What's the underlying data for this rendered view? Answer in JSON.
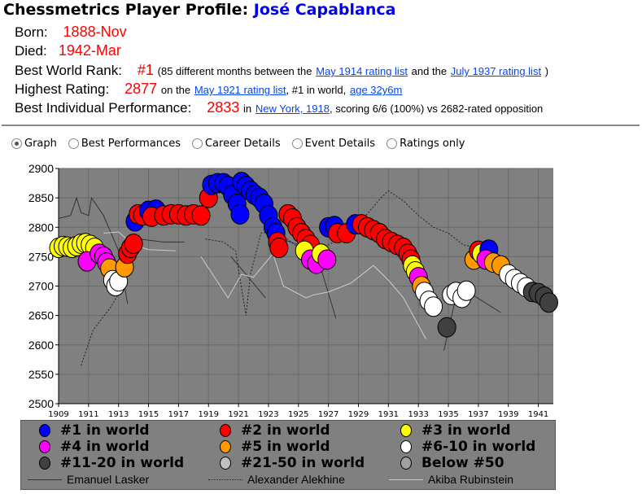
{
  "title": {
    "prefix": "Chessmetrics Player Profile:",
    "name": "José Capablanca"
  },
  "born": {
    "label": "Born:",
    "value": "1888-Nov"
  },
  "died": {
    "label": "Died:",
    "value": "1942-Mar"
  },
  "best_rank": {
    "label": "Best World Rank:",
    "value": "#1",
    "text1": "(85 different months between the",
    "link1": "May 1914 rating list",
    "text2": "and the",
    "link2": "July 1937 rating list",
    "text3": ")"
  },
  "highest": {
    "label": "Highest Rating:",
    "value": "2877",
    "text1": "on the",
    "link1": "May 1921 rating list",
    "text2": ", #1 in world,",
    "link2": "age 32y6m"
  },
  "best_perf": {
    "label": "Best Individual Performance:",
    "value": "2833",
    "text1": "in",
    "link1": "New York, 1918",
    "text2": ", scoring 6/6 (100%) vs 2682-rated opposition"
  },
  "views": [
    {
      "label": "Graph",
      "selected": true
    },
    {
      "label": "Best Performances"
    },
    {
      "label": "Career Details"
    },
    {
      "label": "Event Details"
    },
    {
      "label": "Ratings only"
    }
  ],
  "chart_data": {
    "type": "scatter",
    "ylim": [
      2500,
      2900
    ],
    "xlim": [
      1909,
      1942
    ],
    "yticks": [
      2900,
      2850,
      2800,
      2750,
      2700,
      2650,
      2600,
      2550,
      2500
    ],
    "xticks": [
      1909,
      1911,
      1913,
      1915,
      1917,
      1919,
      1921,
      1923,
      1925,
      1927,
      1929,
      1931,
      1933,
      1935,
      1937,
      1939,
      1941
    ],
    "colors": {
      "1": "#0000ff",
      "2": "#ff0000",
      "3": "#ffff00",
      "4": "#ff00ff",
      "5": "#ff9900",
      "6-10": "#ffffff",
      "11-20": "#404040",
      "21-50": "#c0c0c0",
      "below50": "#a0a0a0"
    },
    "legend": [
      {
        "key": "1",
        "label": "#1 in world"
      },
      {
        "key": "2",
        "label": "#2 in world"
      },
      {
        "key": "3",
        "label": "#3 in world"
      },
      {
        "key": "4",
        "label": "#4 in world"
      },
      {
        "key": "5",
        "label": "#5 in world"
      },
      {
        "key": "6-10",
        "label": "#6-10 in world"
      },
      {
        "key": "11-20",
        "label": "#11-20 in world"
      },
      {
        "key": "21-50",
        "label": "#21-50 in world"
      },
      {
        "key": "below50",
        "label": "Below #50"
      }
    ],
    "points": [
      [
        1909.0,
        2765,
        "3"
      ],
      [
        1909.3,
        2768,
        "3"
      ],
      [
        1909.6,
        2767,
        "3"
      ],
      [
        1909.9,
        2765,
        "3"
      ],
      [
        1910.2,
        2768,
        "3"
      ],
      [
        1910.5,
        2772,
        "3"
      ],
      [
        1910.8,
        2773,
        "3"
      ],
      [
        1911.1,
        2770,
        "3"
      ],
      [
        1911.4,
        2765,
        "3"
      ],
      [
        1910.9,
        2742,
        "4"
      ],
      [
        1911.7,
        2755,
        "4"
      ],
      [
        1912.0,
        2750,
        "4"
      ],
      [
        1912.2,
        2740,
        "4"
      ],
      [
        1912.4,
        2730,
        "5"
      ],
      [
        1912.6,
        2710,
        "6-10"
      ],
      [
        1912.8,
        2700,
        "6-10"
      ],
      [
        1913.0,
        2708,
        "6-10"
      ],
      [
        1913.4,
        2732,
        "5"
      ],
      [
        1913.6,
        2755,
        "2"
      ],
      [
        1913.8,
        2765,
        "2"
      ],
      [
        1914.0,
        2772,
        "2"
      ],
      [
        1914.1,
        2810,
        "1"
      ],
      [
        1914.3,
        2822,
        "2"
      ],
      [
        1914.6,
        2820,
        "2"
      ],
      [
        1915.0,
        2828,
        "1"
      ],
      [
        1915.5,
        2830,
        "1"
      ],
      [
        1915.2,
        2818,
        "2"
      ],
      [
        1916.0,
        2820,
        "2"
      ],
      [
        1916.5,
        2822,
        "2"
      ],
      [
        1917.0,
        2822,
        "2"
      ],
      [
        1917.5,
        2820,
        "2"
      ],
      [
        1918.0,
        2822,
        "2"
      ],
      [
        1918.5,
        2820,
        "2"
      ],
      [
        1919.0,
        2850,
        "2"
      ],
      [
        1919.2,
        2872,
        "1"
      ],
      [
        1919.6,
        2875,
        "1"
      ],
      [
        1920.0,
        2875,
        "1"
      ],
      [
        1920.3,
        2870,
        "1"
      ],
      [
        1920.6,
        2855,
        "1"
      ],
      [
        1920.9,
        2840,
        "1"
      ],
      [
        1921.1,
        2822,
        "1"
      ],
      [
        1921.2,
        2877,
        "1"
      ],
      [
        1921.5,
        2870,
        "1"
      ],
      [
        1921.8,
        2862,
        "1"
      ],
      [
        1922.1,
        2855,
        "1"
      ],
      [
        1922.4,
        2850,
        "1"
      ],
      [
        1922.7,
        2840,
        "1"
      ],
      [
        1923.0,
        2820,
        "1"
      ],
      [
        1923.3,
        2800,
        "1"
      ],
      [
        1923.5,
        2790,
        "1"
      ],
      [
        1923.6,
        2775,
        "2"
      ],
      [
        1923.7,
        2765,
        "2"
      ],
      [
        1924.3,
        2822,
        "2"
      ],
      [
        1924.6,
        2815,
        "2"
      ],
      [
        1924.9,
        2800,
        "2"
      ],
      [
        1925.2,
        2790,
        "2"
      ],
      [
        1925.5,
        2780,
        "2"
      ],
      [
        1925.8,
        2770,
        "2"
      ],
      [
        1925.4,
        2760,
        "3"
      ],
      [
        1925.8,
        2745,
        "4"
      ],
      [
        1926.2,
        2738,
        "4"
      ],
      [
        1926.5,
        2755,
        "3"
      ],
      [
        1926.9,
        2745,
        "4"
      ],
      [
        1927.0,
        2800,
        "1"
      ],
      [
        1927.4,
        2802,
        "1"
      ],
      [
        1927.6,
        2790,
        "2"
      ],
      [
        1928.2,
        2790,
        "2"
      ],
      [
        1928.8,
        2805,
        "1"
      ],
      [
        1929.2,
        2805,
        "2"
      ],
      [
        1929.6,
        2800,
        "2"
      ],
      [
        1930.0,
        2795,
        "2"
      ],
      [
        1930.4,
        2790,
        "2"
      ],
      [
        1930.8,
        2780,
        "2"
      ],
      [
        1931.2,
        2775,
        "2"
      ],
      [
        1931.6,
        2770,
        "2"
      ],
      [
        1932.0,
        2765,
        "2"
      ],
      [
        1932.3,
        2755,
        "2"
      ],
      [
        1932.5,
        2745,
        "2"
      ],
      [
        1932.6,
        2735,
        "3"
      ],
      [
        1932.8,
        2725,
        "3"
      ],
      [
        1933.0,
        2715,
        "4"
      ],
      [
        1933.2,
        2700,
        "5"
      ],
      [
        1933.4,
        2690,
        "6-10"
      ],
      [
        1933.7,
        2675,
        "6-10"
      ],
      [
        1934.0,
        2665,
        "6-10"
      ],
      [
        1934.9,
        2630,
        "11-20"
      ],
      [
        1935.2,
        2685,
        "6-10"
      ],
      [
        1935.5,
        2690,
        "6-10"
      ],
      [
        1935.9,
        2680,
        "6-10"
      ],
      [
        1936.2,
        2692,
        "6-10"
      ],
      [
        1936.7,
        2745,
        "5"
      ],
      [
        1937.0,
        2760,
        "2"
      ],
      [
        1937.2,
        2755,
        "3"
      ],
      [
        1937.7,
        2762,
        "1"
      ],
      [
        1937.5,
        2745,
        "4"
      ],
      [
        1938.0,
        2740,
        "5"
      ],
      [
        1938.5,
        2735,
        "5"
      ],
      [
        1939.0,
        2720,
        "6-10"
      ],
      [
        1939.4,
        2712,
        "6-10"
      ],
      [
        1939.8,
        2705,
        "6-10"
      ],
      [
        1940.2,
        2698,
        "6-10"
      ],
      [
        1940.6,
        2690,
        "11-20"
      ],
      [
        1941.0,
        2688,
        "11-20"
      ],
      [
        1941.4,
        2682,
        "11-20"
      ],
      [
        1941.7,
        2672,
        "11-20"
      ]
    ],
    "series": [
      {
        "name": "Emanuel Lasker",
        "style": "solid",
        "color": "#333333",
        "segments": [
          [
            [
              1909,
              2815
            ],
            [
              1909.8,
              2820
            ],
            [
              1910.2,
              2850
            ],
            [
              1910.5,
              2825
            ],
            [
              1911,
              2820
            ],
            [
              1911.2,
              2850
            ],
            [
              1912,
              2820
            ],
            [
              1913,
              2760
            ],
            [
              1913.6,
              2670
            ]
          ],
          [
            [
              1914.4,
              2780
            ],
            [
              1916,
              2775
            ],
            [
              1917.4,
              2775
            ]
          ],
          [
            [
              1920.5,
              2750
            ],
            [
              1921.5,
              2720
            ],
            [
              1922.8,
              2680
            ]
          ],
          [
            [
              1923.9,
              2780
            ],
            [
              1925,
              2770
            ],
            [
              1926.5,
              2730
            ],
            [
              1927.5,
              2645
            ]
          ],
          [
            [
              1934.7,
              2590
            ],
            [
              1935.4,
              2670
            ],
            [
              1936.3,
              2690
            ],
            [
              1938.5,
              2655
            ]
          ]
        ]
      },
      {
        "name": "Alexander Alekhine",
        "style": "dotted",
        "color": "#222222",
        "segments": [
          [
            [
              1910.5,
              2565
            ],
            [
              1911.3,
              2625
            ],
            [
              1912.5,
              2665
            ],
            [
              1913.3,
              2700
            ]
          ],
          [
            [
              1918.8,
              2780
            ],
            [
              1920,
              2775
            ],
            [
              1920.8,
              2760
            ],
            [
              1921.5,
              2650
            ],
            [
              1921.8,
              2720
            ],
            [
              1922.5,
              2790
            ],
            [
              1923.5,
              2795
            ],
            [
              1925,
              2765
            ],
            [
              1926,
              2760
            ],
            [
              1927,
              2770
            ],
            [
              1928,
              2785
            ],
            [
              1929.5,
              2820
            ],
            [
              1930.5,
              2850
            ],
            [
              1931,
              2862
            ],
            [
              1932,
              2845
            ],
            [
              1933,
              2820
            ],
            [
              1934,
              2800
            ],
            [
              1935,
              2790
            ],
            [
              1936,
              2770
            ],
            [
              1937,
              2765
            ]
          ]
        ]
      },
      {
        "name": "Akiba Rubinstein",
        "style": "solid",
        "color": "#cccccc",
        "segments": [
          [
            [
              1912,
              2790
            ],
            [
              1913,
              2792
            ],
            [
              1914,
              2770
            ],
            [
              1915,
              2762
            ],
            [
              1916.8,
              2760
            ]
          ],
          [
            [
              1918.5,
              2750
            ],
            [
              1920.3,
              2680
            ],
            [
              1921.2,
              2720
            ],
            [
              1922,
              2715
            ],
            [
              1923.3,
              2755
            ],
            [
              1924,
              2700
            ],
            [
              1925.5,
              2680
            ],
            [
              1926,
              2685
            ],
            [
              1927,
              2690
            ],
            [
              1928.5,
              2705
            ],
            [
              1930,
              2735
            ],
            [
              1931,
              2710
            ],
            [
              1932,
              2680
            ],
            [
              1933.5,
              2610
            ]
          ]
        ]
      }
    ]
  }
}
